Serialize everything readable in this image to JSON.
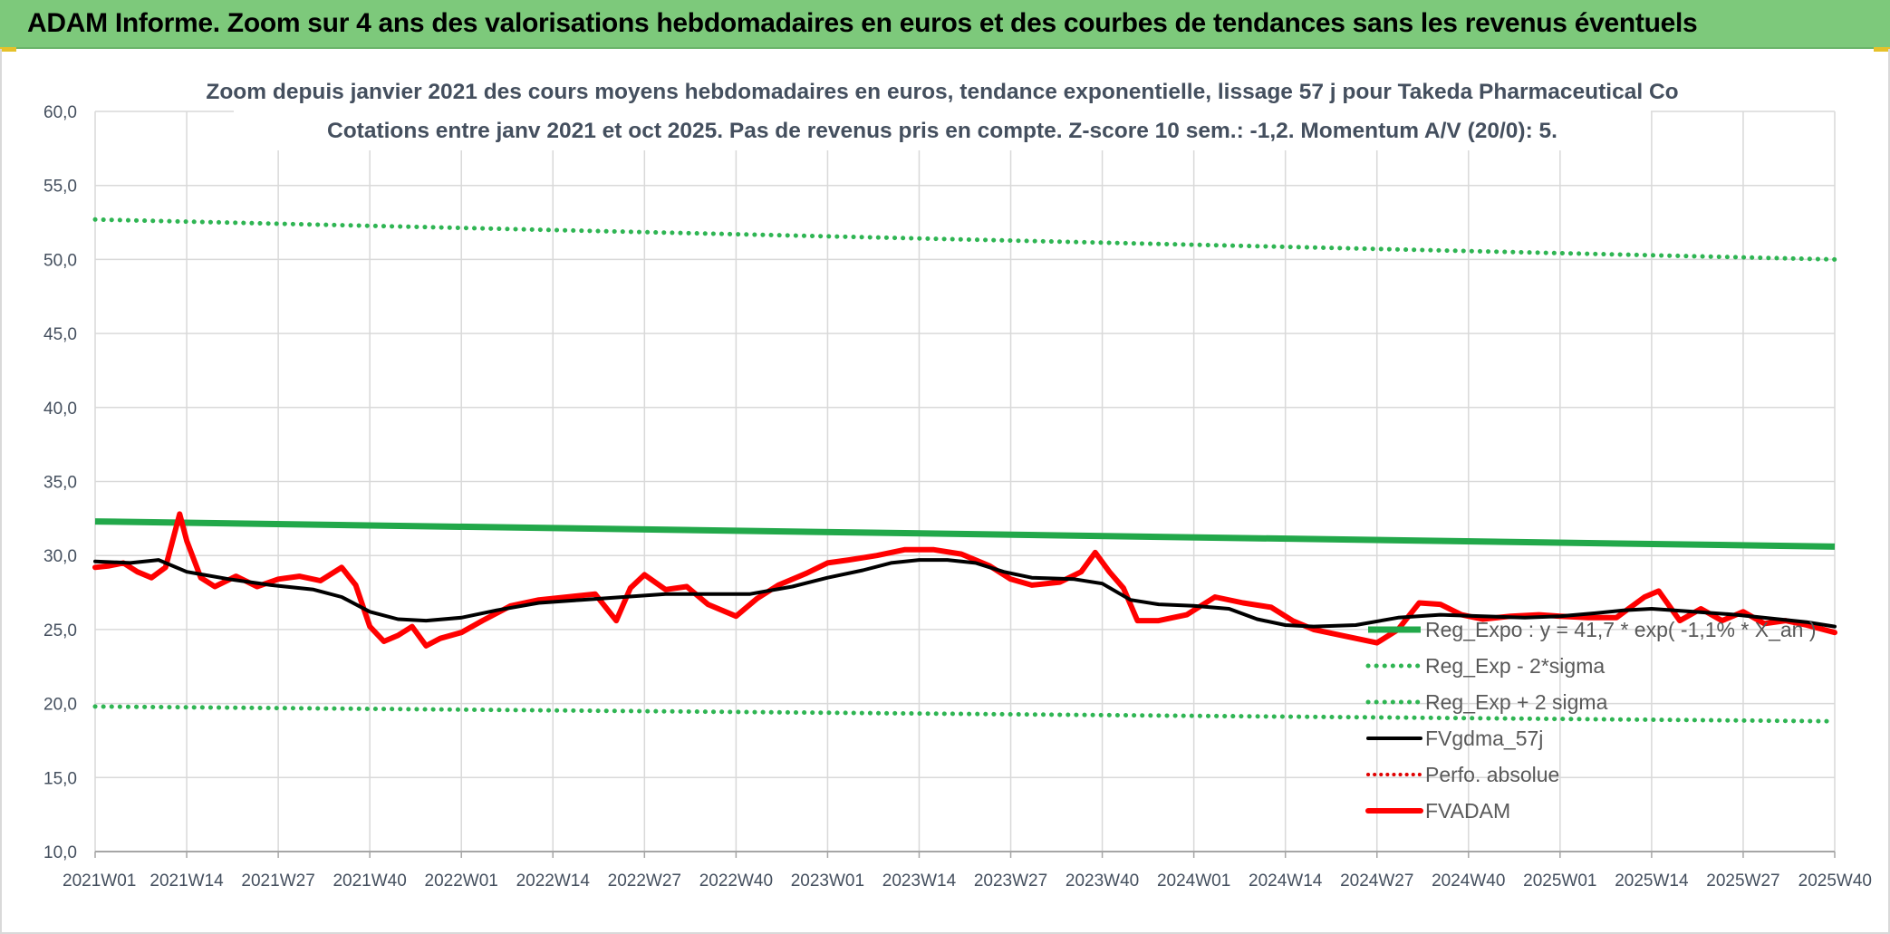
{
  "banner": {
    "title": "ADAM Informe. Zoom sur 4 ans des valorisations hebdomadaires en euros et des courbes de tendances sans les revenus éventuels"
  },
  "colors": {
    "banner_bg": "#7dc97b",
    "reg_expo": "#22a84a",
    "sigma_bands": "#2fb553",
    "fvgdma": "#000000",
    "perfo": "#e00000",
    "fvadam": "#ff0000"
  },
  "chart_data": {
    "type": "line",
    "title": "Zoom depuis janvier 2021 des cours moyens hebdomadaires en euros, tendance exponentielle, lissage 57 j pour Takeda Pharmaceutical Co",
    "subtitle": "Cotations entre janv 2021 et oct 2025. Pas de revenus pris en compte. Z-score 10 sem.: -1,2. Momentum A/V (20/0): 5.",
    "xlabel": "",
    "ylabel": "",
    "ylim": [
      10,
      60
    ],
    "y_ticks": [
      "10,0",
      "15,0",
      "20,0",
      "25,0",
      "30,0",
      "35,0",
      "40,0",
      "45,0",
      "50,0",
      "55,0",
      "60,0"
    ],
    "x_ticks": [
      "2021W01",
      "2021W14",
      "2021W27",
      "2021W40",
      "2022W01",
      "2022W14",
      "2022W27",
      "2022W40",
      "2023W01",
      "2023W14",
      "2023W27",
      "2023W40",
      "2024W01",
      "2024W14",
      "2024W27",
      "2024W40",
      "2025W01",
      "2025W14",
      "2025W27",
      "2025W40"
    ],
    "grid": true,
    "legend_position": "bottom-right",
    "series": [
      {
        "name": "Reg_Expo : y = 41,7 * exp( -1,1% * X_an )",
        "style": "solid-thick",
        "x": [
          "2021W01",
          "2025W40"
        ],
        "values": [
          32.3,
          30.6
        ]
      },
      {
        "name": "Reg_Exp - 2*sigma",
        "style": "dotted",
        "x": [
          "2021W01",
          "2025W40"
        ],
        "values": [
          19.8,
          18.8
        ]
      },
      {
        "name": "Reg_Exp + 2 sigma",
        "style": "dotted",
        "x": [
          "2021W01",
          "2025W40"
        ],
        "values": [
          52.7,
          50.0
        ]
      },
      {
        "name": "FVgdma_57j",
        "style": "solid",
        "x": [
          "2021W01",
          "2021W06",
          "2021W10",
          "2021W14",
          "2021W20",
          "2021W26",
          "2021W32",
          "2021W36",
          "2021W40",
          "2021W44",
          "2021W48",
          "2022W01",
          "2022W06",
          "2022W12",
          "2022W18",
          "2022W24",
          "2022W30",
          "2022W36",
          "2022W42",
          "2022W48",
          "2023W01",
          "2023W06",
          "2023W10",
          "2023W14",
          "2023W18",
          "2023W22",
          "2023W26",
          "2023W30",
          "2023W36",
          "2023W40",
          "2023W44",
          "2023W48",
          "2024W01",
          "2024W06",
          "2024W10",
          "2024W14",
          "2024W18",
          "2024W24",
          "2024W30",
          "2024W36",
          "2024W42",
          "2024W48",
          "2025W01",
          "2025W06",
          "2025W10",
          "2025W14",
          "2025W20",
          "2025W26",
          "2025W32",
          "2025W36",
          "2025W40"
        ],
        "values": [
          29.6,
          29.5,
          29.7,
          28.9,
          28.4,
          28.0,
          27.7,
          27.2,
          26.2,
          25.7,
          25.6,
          25.8,
          26.3,
          26.8,
          27.0,
          27.2,
          27.4,
          27.4,
          27.4,
          27.9,
          28.5,
          29.0,
          29.5,
          29.7,
          29.7,
          29.5,
          28.9,
          28.5,
          28.4,
          28.1,
          27.0,
          26.7,
          26.6,
          26.4,
          25.7,
          25.3,
          25.2,
          25.3,
          25.8,
          26.0,
          25.9,
          25.8,
          25.9,
          26.1,
          26.3,
          26.4,
          26.2,
          26.0,
          25.7,
          25.5,
          25.2
        ]
      },
      {
        "name": "Perfo. absolue",
        "style": "dotted",
        "x": [],
        "values": []
      },
      {
        "name": "FVADAM",
        "style": "solid-thick",
        "x": [
          "2021W01",
          "2021W03",
          "2021W05",
          "2021W07",
          "2021W09",
          "2021W11",
          "2021W13",
          "2021W14",
          "2021W16",
          "2021W18",
          "2021W21",
          "2021W24",
          "2021W27",
          "2021W30",
          "2021W33",
          "2021W36",
          "2021W38",
          "2021W40",
          "2021W42",
          "2021W44",
          "2021W46",
          "2021W48",
          "2021W50",
          "2022W01",
          "2022W04",
          "2022W08",
          "2022W12",
          "2022W16",
          "2022W20",
          "2022W23",
          "2022W25",
          "2022W27",
          "2022W30",
          "2022W33",
          "2022W36",
          "2022W40",
          "2022W43",
          "2022W46",
          "2022W50",
          "2023W01",
          "2023W04",
          "2023W08",
          "2023W12",
          "2023W16",
          "2023W20",
          "2023W24",
          "2023W27",
          "2023W30",
          "2023W34",
          "2023W37",
          "2023W39",
          "2023W41",
          "2023W43",
          "2023W45",
          "2023W48",
          "2023W52",
          "2024W04",
          "2024W08",
          "2024W12",
          "2024W15",
          "2024W18",
          "2024W21",
          "2024W24",
          "2024W27",
          "2024W30",
          "2024W33",
          "2024W36",
          "2024W39",
          "2024W42",
          "2024W46",
          "2024W50",
          "2025W01",
          "2025W05",
          "2025W09",
          "2025W13",
          "2025W15",
          "2025W18",
          "2025W21",
          "2025W24",
          "2025W27",
          "2025W30",
          "2025W33",
          "2025W36",
          "2025W40"
        ],
        "values": [
          29.2,
          29.3,
          29.5,
          28.9,
          28.5,
          29.2,
          32.8,
          31.0,
          28.5,
          27.9,
          28.6,
          27.9,
          28.4,
          28.6,
          28.3,
          29.2,
          28.0,
          25.2,
          24.2,
          24.6,
          25.2,
          23.9,
          24.4,
          24.8,
          25.6,
          26.6,
          27.0,
          27.2,
          27.4,
          25.6,
          27.8,
          28.7,
          27.7,
          27.9,
          26.7,
          25.9,
          27.1,
          28.0,
          28.8,
          29.5,
          29.7,
          30.0,
          30.4,
          30.4,
          30.1,
          29.3,
          28.4,
          28.0,
          28.2,
          28.9,
          30.2,
          28.9,
          27.8,
          25.6,
          25.6,
          26.0,
          27.2,
          26.8,
          26.5,
          25.6,
          25.0,
          24.7,
          24.4,
          24.1,
          25.0,
          26.8,
          26.7,
          26.0,
          25.7,
          25.9,
          26.0,
          25.9,
          25.8,
          25.8,
          27.2,
          27.6,
          25.6,
          26.4,
          25.6,
          26.2,
          25.4,
          25.6,
          25.3,
          24.8
        ]
      }
    ]
  }
}
